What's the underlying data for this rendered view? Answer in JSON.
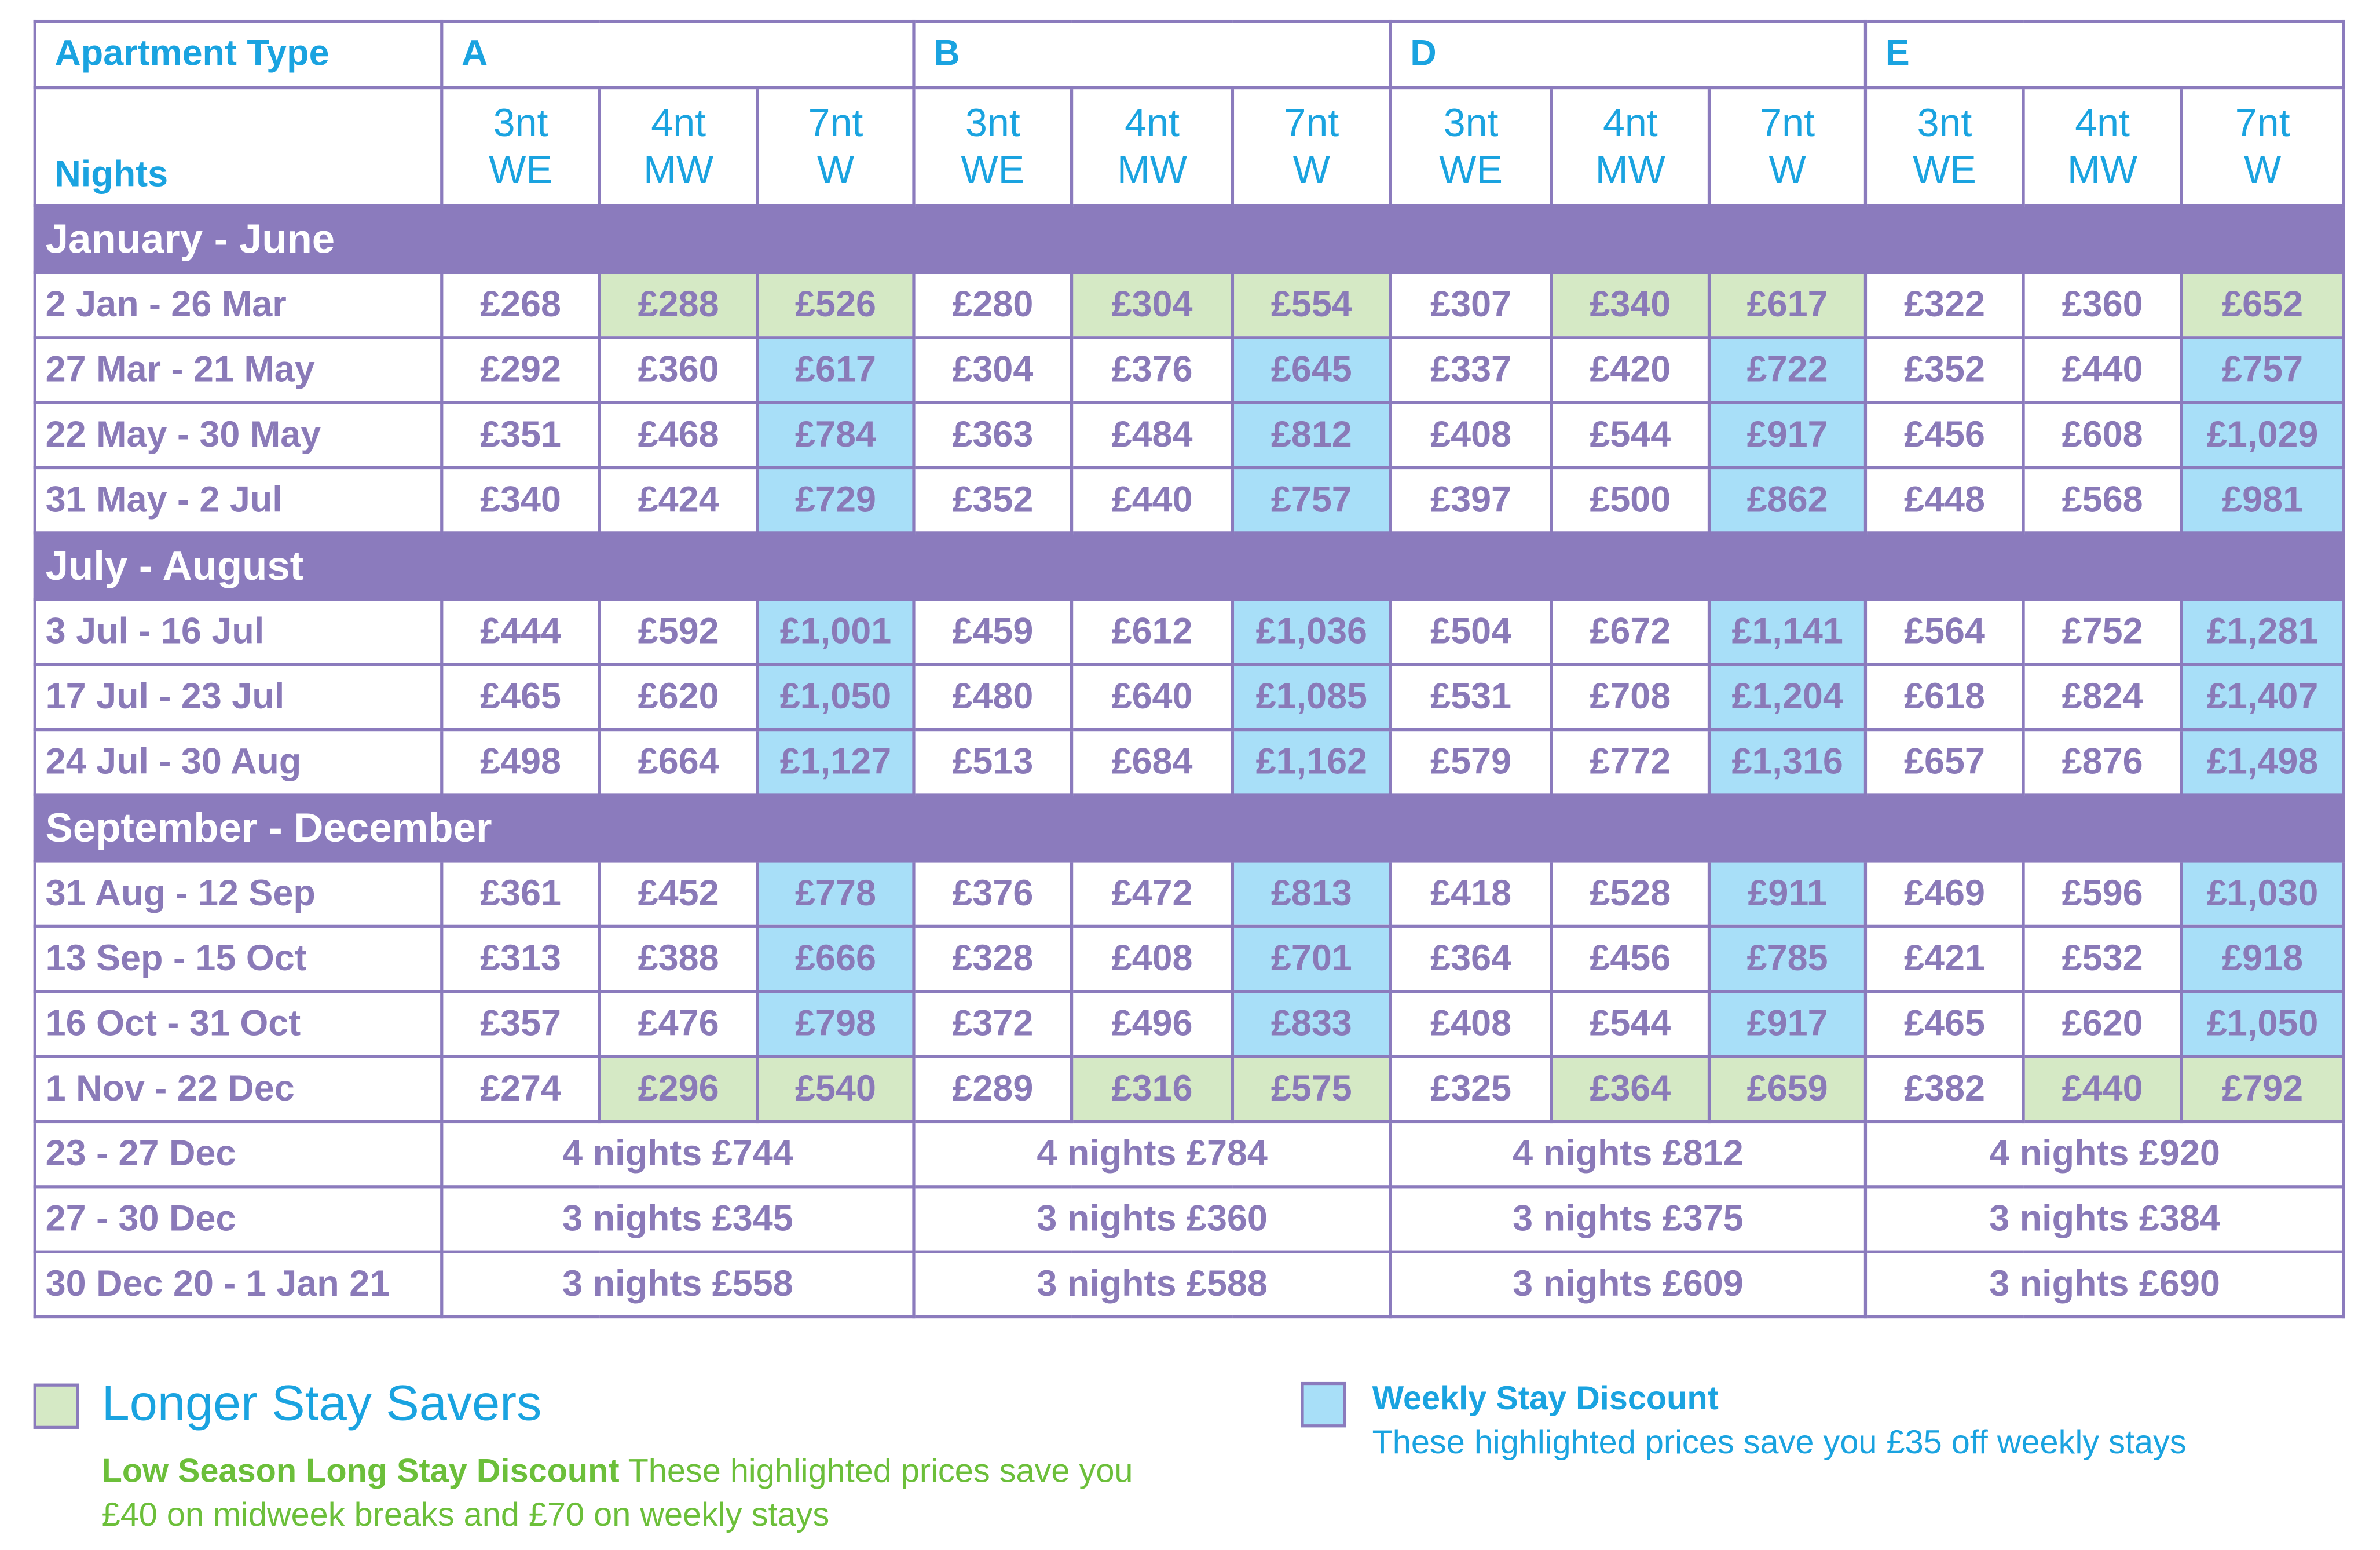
{
  "table": {
    "header": {
      "apartment_type_label": "Apartment Type",
      "types": [
        "A",
        "B",
        "D",
        "E"
      ],
      "nights_label": "Nights",
      "nights": [
        [
          "3nt",
          "WE"
        ],
        [
          "4nt",
          "MW"
        ],
        [
          "7nt",
          "W"
        ],
        [
          "3nt",
          "WE"
        ],
        [
          "4nt",
          "MW"
        ],
        [
          "7nt",
          "W"
        ],
        [
          "3nt",
          "WE"
        ],
        [
          "4nt",
          "MW"
        ],
        [
          "7nt",
          "W"
        ],
        [
          "3nt",
          "WE"
        ],
        [
          "4nt",
          "MW"
        ],
        [
          "7nt",
          "W"
        ]
      ]
    },
    "sections": [
      {
        "title": "January - June",
        "rows": [
          {
            "dates": "2 Jan - 26 Mar",
            "prices": [
              "£268",
              "£288",
              "£526",
              "£280",
              "£304",
              "£554",
              "£307",
              "£340",
              "£617",
              "£322",
              "£360",
              "£652"
            ],
            "fills": [
              null,
              "#d5e9c5",
              "#d5e9c5",
              null,
              "#d5e9c5",
              "#d5e9c5",
              null,
              "#d5e9c5",
              "#d5e9c5",
              null,
              null,
              "#d5e9c5"
            ]
          },
          {
            "dates": "27 Mar - 21 May",
            "prices": [
              "£292",
              "£360",
              "£617",
              "£304",
              "£376",
              "£645",
              "£337",
              "£420",
              "£722",
              "£352",
              "£440",
              "£757"
            ],
            "fills": [
              null,
              null,
              "#a8dff8",
              null,
              null,
              "#a8dff8",
              null,
              null,
              "#a8dff8",
              null,
              null,
              "#a8dff8"
            ]
          },
          {
            "dates": "22 May - 30 May",
            "prices": [
              "£351",
              "£468",
              "£784",
              "£363",
              "£484",
              "£812",
              "£408",
              "£544",
              "£917",
              "£456",
              "£608",
              "£1,029"
            ],
            "fills": [
              null,
              null,
              "#a8dff8",
              null,
              null,
              "#a8dff8",
              null,
              null,
              "#a8dff8",
              null,
              null,
              "#a8dff8"
            ]
          },
          {
            "dates": "31 May - 2 Jul",
            "prices": [
              "£340",
              "£424",
              "£729",
              "£352",
              "£440",
              "£757",
              "£397",
              "£500",
              "£862",
              "£448",
              "£568",
              "£981"
            ],
            "fills": [
              null,
              null,
              "#a8dff8",
              null,
              null,
              "#a8dff8",
              null,
              null,
              "#a8dff8",
              null,
              null,
              "#a8dff8"
            ]
          }
        ]
      },
      {
        "title": "July - August",
        "rows": [
          {
            "dates": "3 Jul - 16 Jul",
            "prices": [
              "£444",
              "£592",
              "£1,001",
              "£459",
              "£612",
              "£1,036",
              "£504",
              "£672",
              "£1,141",
              "£564",
              "£752",
              "£1,281"
            ],
            "fills": [
              null,
              null,
              "#a8dff8",
              null,
              null,
              "#a8dff8",
              null,
              null,
              "#a8dff8",
              null,
              null,
              "#a8dff8"
            ]
          },
          {
            "dates": "17 Jul - 23 Jul",
            "prices": [
              "£465",
              "£620",
              "£1,050",
              "£480",
              "£640",
              "£1,085",
              "£531",
              "£708",
              "£1,204",
              "£618",
              "£824",
              "£1,407"
            ],
            "fills": [
              null,
              null,
              "#a8dff8",
              null,
              null,
              "#a8dff8",
              null,
              null,
              "#a8dff8",
              null,
              null,
              "#a8dff8"
            ]
          },
          {
            "dates": "24 Jul - 30 Aug",
            "prices": [
              "£498",
              "£664",
              "£1,127",
              "£513",
              "£684",
              "£1,162",
              "£579",
              "£772",
              "£1,316",
              "£657",
              "£876",
              "£1,498"
            ],
            "fills": [
              null,
              null,
              "#a8dff8",
              null,
              null,
              "#a8dff8",
              null,
              null,
              "#a8dff8",
              null,
              null,
              "#a8dff8"
            ]
          }
        ]
      },
      {
        "title": "September - December",
        "rows": [
          {
            "dates": "31 Aug - 12 Sep",
            "prices": [
              "£361",
              "£452",
              "£778",
              "£376",
              "£472",
              "£813",
              "£418",
              "£528",
              "£911",
              "£469",
              "£596",
              "£1,030"
            ],
            "fills": [
              null,
              null,
              "#a8dff8",
              null,
              null,
              "#a8dff8",
              null,
              null,
              "#a8dff8",
              null,
              null,
              "#a8dff8"
            ]
          },
          {
            "dates": "13 Sep - 15 Oct",
            "prices": [
              "£313",
              "£388",
              "£666",
              "£328",
              "£408",
              "£701",
              "£364",
              "£456",
              "£785",
              "£421",
              "£532",
              "£918"
            ],
            "fills": [
              null,
              null,
              "#a8dff8",
              null,
              null,
              "#a8dff8",
              null,
              null,
              "#a8dff8",
              null,
              null,
              "#a8dff8"
            ]
          },
          {
            "dates": "16 Oct - 31 Oct",
            "prices": [
              "£357",
              "£476",
              "£798",
              "£372",
              "£496",
              "£833",
              "£408",
              "£544",
              "£917",
              "£465",
              "£620",
              "£1,050"
            ],
            "fills": [
              null,
              null,
              "#a8dff8",
              null,
              null,
              "#a8dff8",
              null,
              null,
              "#a8dff8",
              null,
              null,
              "#a8dff8"
            ]
          },
          {
            "dates": "1 Nov - 22 Dec",
            "prices": [
              "£274",
              "£296",
              "£540",
              "£289",
              "£316",
              "£575",
              "£325",
              "£364",
              "£659",
              "£382",
              "£440",
              "£792"
            ],
            "fills": [
              null,
              "#d5e9c5",
              "#d5e9c5",
              null,
              "#d5e9c5",
              "#d5e9c5",
              null,
              "#d5e9c5",
              "#d5e9c5",
              null,
              "#d5e9c5",
              "#d5e9c5"
            ]
          },
          {
            "dates": "23 - 27 Dec",
            "offers": [
              "4 nights £744",
              "4 nights £784",
              "4 nights £812",
              "4 nights £920"
            ]
          },
          {
            "dates": "27 - 30 Dec",
            "offers": [
              "3 nights £345",
              "3 nights £360",
              "3 nights £375",
              "3 nights £384"
            ]
          },
          {
            "dates": "30 Dec 20 - 1 Jan 21",
            "offers": [
              "3 nights £558",
              "3 nights £588",
              "3 nights £609",
              "3 nights £690"
            ]
          }
        ]
      }
    ]
  },
  "legend": {
    "savers": {
      "color": "#d5e9c5",
      "title": "Longer Stay Savers",
      "subtitle": "Low Season Long Stay Discount",
      "text": "These highlighted prices save you £40 on midweek breaks and £70 on weekly stays"
    },
    "weekly": {
      "color": "#a8dff8",
      "title": "Weekly Stay Discount",
      "text": "These highlighted prices save you £35 off weekly stays"
    }
  }
}
